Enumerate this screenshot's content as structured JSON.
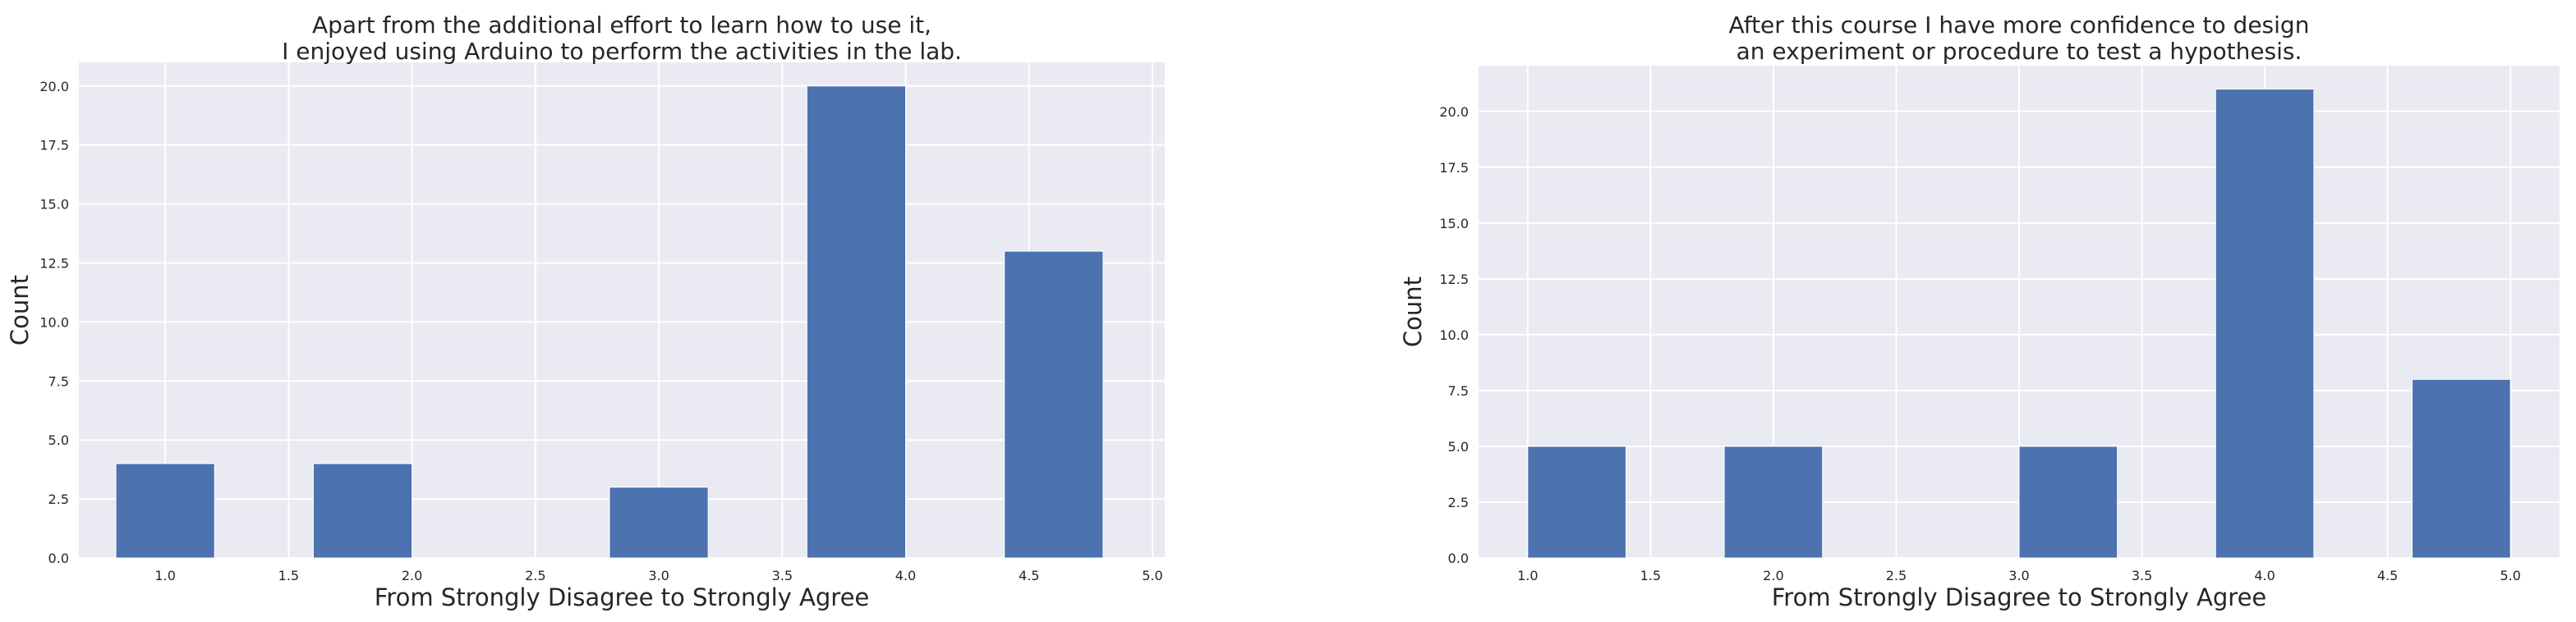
{
  "chart_data": [
    {
      "type": "bar",
      "title_lines": [
        "Apart from the additional effort to learn how to use it,",
        "I enjoyed using Arduino to perform the activities in the lab."
      ],
      "xlabel": "From Strongly Disagree to Strongly Agree",
      "ylabel": "Count",
      "xlim": [
        0.65,
        5.05
      ],
      "ylim": [
        0,
        21
      ],
      "xticks": [
        "1.0",
        "1.5",
        "2.0",
        "2.5",
        "3.0",
        "3.5",
        "4.0",
        "4.5",
        "5.0"
      ],
      "xtick_values": [
        1.0,
        1.5,
        2.0,
        2.5,
        3.0,
        3.5,
        4.0,
        4.5,
        5.0
      ],
      "yticks": [
        "0.0",
        "2.5",
        "5.0",
        "7.5",
        "10.0",
        "12.5",
        "15.0",
        "17.5",
        "20.0"
      ],
      "ytick_values": [
        0,
        2.5,
        5,
        7.5,
        10,
        12.5,
        15,
        17.5,
        20
      ],
      "bins": [
        {
          "x0": 0.8,
          "x1": 1.2,
          "value": 4
        },
        {
          "x0": 1.6,
          "x1": 2.0,
          "value": 4
        },
        {
          "x0": 2.8,
          "x1": 3.2,
          "value": 3
        },
        {
          "x0": 3.6,
          "x1": 4.0,
          "value": 20
        },
        {
          "x0": 4.4,
          "x1": 4.8,
          "value": 13
        }
      ],
      "grid": true,
      "legend": "none"
    },
    {
      "type": "bar",
      "title_lines": [
        "After this course I have more confidence to design",
        "an experiment or procedure to test a hypothesis."
      ],
      "xlabel": "From Strongly Disagree to Strongly Agree",
      "ylabel": "Count",
      "xlim": [
        0.8,
        5.2
      ],
      "ylim": [
        0,
        22.05
      ],
      "xticks": [
        "1.0",
        "1.5",
        "2.0",
        "2.5",
        "3.0",
        "3.5",
        "4.0",
        "4.5",
        "5.0"
      ],
      "xtick_values": [
        1.0,
        1.5,
        2.0,
        2.5,
        3.0,
        3.5,
        4.0,
        4.5,
        5.0
      ],
      "yticks": [
        "0.0",
        "2.5",
        "5.0",
        "7.5",
        "10.0",
        "12.5",
        "15.0",
        "17.5",
        "20.0"
      ],
      "ytick_values": [
        0,
        2.5,
        5,
        7.5,
        10,
        12.5,
        15,
        17.5,
        20
      ],
      "bins": [
        {
          "x0": 1.0,
          "x1": 1.4,
          "value": 5
        },
        {
          "x0": 1.8,
          "x1": 2.2,
          "value": 5
        },
        {
          "x0": 3.0,
          "x1": 3.4,
          "value": 5
        },
        {
          "x0": 3.8,
          "x1": 4.2,
          "value": 21
        },
        {
          "x0": 4.6,
          "x1": 5.0,
          "value": 8
        }
      ],
      "grid": true,
      "legend": "none"
    }
  ]
}
